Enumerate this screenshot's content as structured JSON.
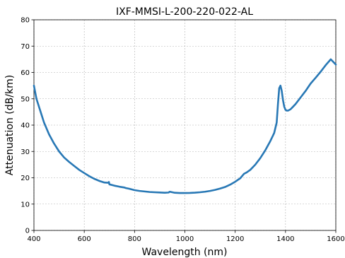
{
  "chart_data": {
    "type": "line",
    "title": "IXF-MMSI-L-200-220-022-AL",
    "xlabel": "Wavelength (nm)",
    "ylabel": "Attenuation (dB/km)",
    "xlim": [
      400,
      1600
    ],
    "ylim": [
      0,
      80
    ],
    "xticks": [
      400,
      600,
      800,
      1000,
      1200,
      1400,
      1600
    ],
    "yticks": [
      0,
      10,
      20,
      30,
      40,
      50,
      60,
      70,
      80
    ],
    "grid": true,
    "colors": {
      "line": "#2878b5"
    },
    "series": [
      {
        "x": [
          400,
          410,
          420,
          440,
          460,
          480,
          500,
          520,
          540,
          560,
          580,
          600,
          620,
          640,
          660,
          680,
          695,
          698,
          700,
          720,
          740,
          760,
          765,
          780,
          800,
          820,
          840,
          860,
          880,
          900,
          920,
          935,
          940,
          950,
          960,
          980,
          1000,
          1020,
          1040,
          1060,
          1080,
          1100,
          1120,
          1140,
          1160,
          1180,
          1200,
          1220,
          1235,
          1245,
          1260,
          1280,
          1300,
          1320,
          1340,
          1355,
          1365,
          1370,
          1375,
          1380,
          1385,
          1390,
          1395,
          1400,
          1405,
          1410,
          1420,
          1430,
          1440,
          1460,
          1480,
          1500,
          1520,
          1540,
          1560,
          1580,
          1600
        ],
        "y": [
          55,
          50,
          47,
          41,
          36.5,
          33,
          30,
          27.7,
          26,
          24.5,
          23,
          21.8,
          20.6,
          19.6,
          18.8,
          18.2,
          18.1,
          18.4,
          17.5,
          17,
          16.6,
          16.3,
          16.1,
          15.8,
          15.3,
          15,
          14.8,
          14.6,
          14.5,
          14.4,
          14.3,
          14.4,
          14.7,
          14.5,
          14.3,
          14.2,
          14.2,
          14.25,
          14.35,
          14.5,
          14.7,
          15,
          15.4,
          15.9,
          16.5,
          17.4,
          18.5,
          19.8,
          21.5,
          22,
          23,
          25,
          27.5,
          30.5,
          34,
          37,
          41,
          48,
          54,
          55,
          53,
          49.5,
          47,
          45.8,
          45.5,
          45.5,
          46,
          47,
          48,
          50.5,
          53,
          55.8,
          58,
          60.3,
          62.8,
          65,
          63
        ]
      }
    ]
  }
}
